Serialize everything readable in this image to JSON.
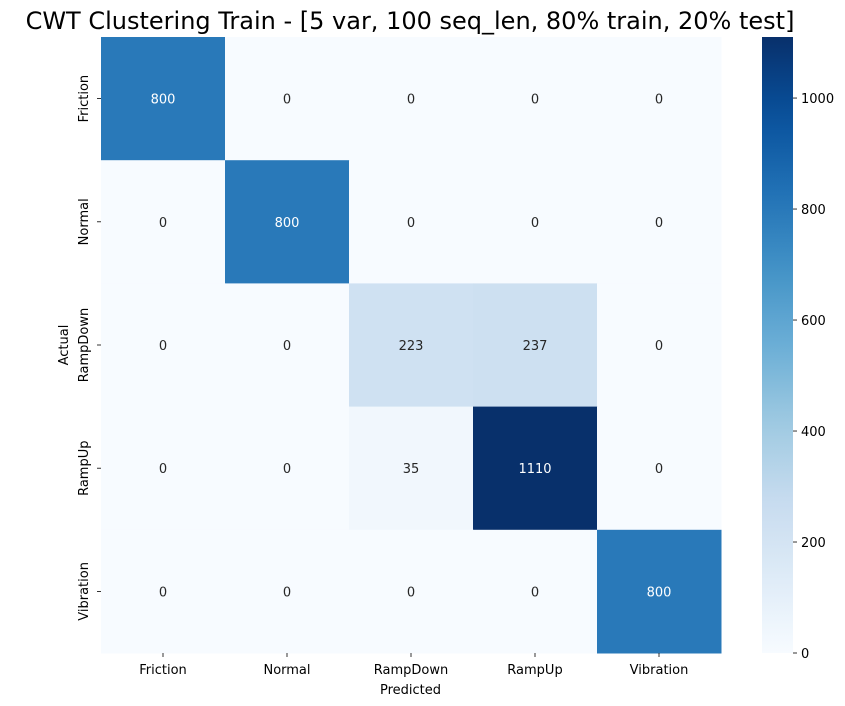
{
  "chart_data": {
    "type": "heatmap",
    "title": "CWT Clustering Train - [5 var, 100 seq_len, 80% train, 20% test]",
    "xlabel": "Predicted",
    "ylabel": "Actual",
    "x_categories": [
      "Friction",
      "Normal",
      "RampDown",
      "RampUp",
      "Vibration"
    ],
    "y_categories": [
      "Friction",
      "Normal",
      "RampDown",
      "RampUp",
      "Vibration"
    ],
    "values": [
      [
        800,
        0,
        0,
        0,
        0
      ],
      [
        0,
        800,
        0,
        0,
        0
      ],
      [
        0,
        0,
        223,
        237,
        0
      ],
      [
        0,
        0,
        35,
        1110,
        0
      ],
      [
        0,
        0,
        0,
        0,
        800
      ]
    ],
    "colormap": "Blues",
    "colorbar": {
      "range": [
        0,
        1110
      ],
      "ticks": [
        0,
        200,
        400,
        600,
        800,
        1000
      ],
      "tick_labels": [
        "0",
        "200",
        "400",
        "600",
        "800",
        "1000"
      ]
    },
    "annotated": true,
    "grid": false
  }
}
